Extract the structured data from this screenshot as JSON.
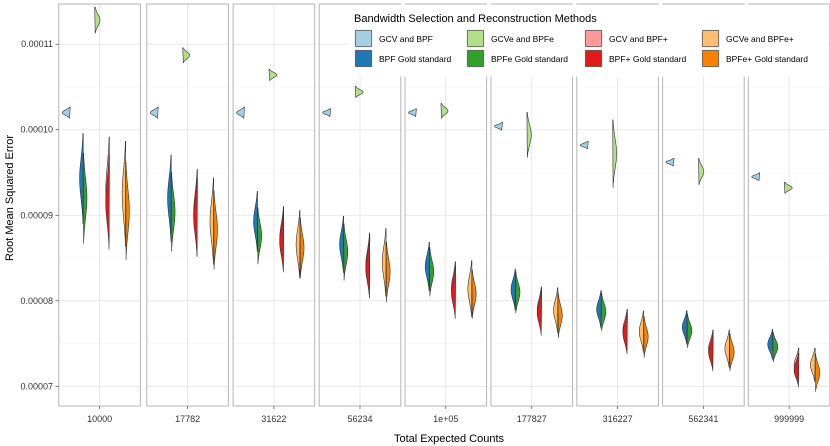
{
  "chart_data": {
    "type": "violin",
    "xlabel": "Total Expected Counts",
    "ylabel": "Root Mean Squared Error",
    "ylim": [
      6.77e-05,
      0.0001147
    ],
    "yticks": [
      7e-05,
      8e-05,
      9e-05,
      0.0001,
      0.00011
    ],
    "ytick_labels": [
      "0.00007",
      "0.00008",
      "0.00009",
      "0.00010",
      "0.00011"
    ],
    "facets": [
      "10000",
      "17782",
      "31622",
      "56234",
      "1e+05",
      "177827",
      "316227",
      "562341",
      "999999"
    ],
    "legend": {
      "title": "Bandwidth Selection and Reconstruction Methods",
      "position": "top-right",
      "entries": [
        {
          "label": "GCV and BPF",
          "color": "#a6cee3"
        },
        {
          "label": "BPF Gold standard",
          "color": "#1f78b4"
        },
        {
          "label": "GCVe and BPFe",
          "color": "#b2df8a"
        },
        {
          "label": "BPFe Gold standard",
          "color": "#33a02c"
        },
        {
          "label": "GCV and BPF+",
          "color": "#fb9a99"
        },
        {
          "label": "BPF+ Gold standard",
          "color": "#e31a1c"
        },
        {
          "label": "GCVe and BPFe+",
          "color": "#fdbf6f"
        },
        {
          "label": "BPFe+ Gold standard",
          "color": "#ff7f00"
        }
      ]
    },
    "series": [
      {
        "name": "GCV and BPF",
        "values": [
          0.000102,
          0.000102,
          0.000102,
          0.000102,
          0.000102,
          0.0001004,
          9.82e-05,
          9.62e-05,
          9.45e-05
        ]
      },
      {
        "name": "BPF Gold standard",
        "values": [
          9.43e-05,
          9.2e-05,
          8.93e-05,
          8.66e-05,
          8.4e-05,
          8.13e-05,
          7.9e-05,
          7.69e-05,
          7.49e-05
        ]
      },
      {
        "name": "GCVe and BPFe",
        "values": [
          0.0001128,
          0.0001087,
          0.0001064,
          0.0001044,
          0.0001022,
          9.94e-05,
          9.72e-05,
          9.51e-05,
          9.32e-05
        ]
      },
      {
        "name": "BPFe Gold standard",
        "values": [
          9.2e-05,
          9.04e-05,
          8.76e-05,
          8.57e-05,
          8.34e-05,
          8.1e-05,
          7.87e-05,
          7.65e-05,
          7.46e-05
        ]
      },
      {
        "name": "GCV and BPF+",
        "values": [
          9.3e-05,
          9.03e-05,
          8.73e-05,
          8.42e-05,
          8.15e-05,
          7.9e-05,
          7.66e-05,
          7.44e-05,
          7.25e-05
        ]
      },
      {
        "name": "BPF+ Gold standard",
        "values": [
          9.15e-05,
          8.98e-05,
          8.69e-05,
          8.38e-05,
          8.1e-05,
          7.86e-05,
          7.62e-05,
          7.4e-05,
          7.19e-05
        ]
      },
      {
        "name": "GCVe and BPFe+",
        "values": [
          9.25e-05,
          8.93e-05,
          8.66e-05,
          8.45e-05,
          8.14e-05,
          7.89e-05,
          7.64e-05,
          7.44e-05,
          7.25e-05
        ]
      },
      {
        "name": "BPFe+ Gold standard",
        "values": [
          9.05e-05,
          8.83e-05,
          8.62e-05,
          8.34e-05,
          8.08e-05,
          7.83e-05,
          7.58e-05,
          7.4e-05,
          7.16e-05
        ]
      }
    ],
    "spread": [
      [
        3e-07,
        3e-07,
        3e-07,
        2e-07,
        2e-07,
        2e-07,
        2e-07,
        2e-07,
        2e-07
      ],
      [
        2.4e-06,
        2.3e-06,
        1.6e-06,
        1.5e-06,
        1.3e-06,
        1.1e-06,
        1e-06,
        9e-07,
        8e-07
      ],
      [
        7e-07,
        4e-07,
        3e-07,
        3e-07,
        4e-07,
        1.2e-06,
        1.8e-06,
        7e-07,
        3e-07
      ],
      [
        2.4e-06,
        2.1e-06,
        1.5e-06,
        1.5e-06,
        1.3e-06,
        1.1e-06,
        1e-06,
        9e-07,
        8e-07
      ],
      [
        2.8e-06,
        2.3e-06,
        1.7e-06,
        1.7e-06,
        1.4e-06,
        1.2e-06,
        1.1e-06,
        1e-06,
        9e-07
      ],
      [
        2.5e-06,
        2.1e-06,
        1.6e-06,
        1.6e-06,
        1.4e-06,
        1.2e-06,
        1.1e-06,
        1e-06,
        9e-07
      ],
      [
        2.8e-06,
        2.3e-06,
        1.8e-06,
        1.8e-06,
        1.5e-06,
        1.2e-06,
        1.1e-06,
        1e-06,
        9e-07
      ],
      [
        2.6e-06,
        2.1e-06,
        1.6e-06,
        1.6e-06,
        1.3e-06,
        1.2e-06,
        1.1e-06,
        1e-06,
        1e-06
      ]
    ]
  }
}
